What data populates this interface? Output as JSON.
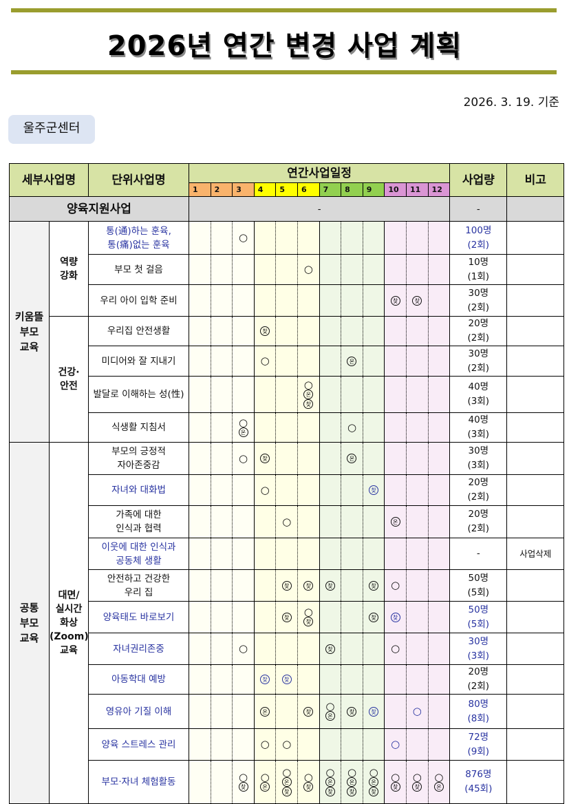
{
  "header": {
    "title": "2026년 연간 변경 사업 계획",
    "date": "2026. 3. 19. 기준",
    "center": "울주군센터",
    "accent_color": "#9a9d2e"
  },
  "table": {
    "columns": {
      "detail": "세부사업명",
      "unit": "단위사업명",
      "schedule": "연간사업일정",
      "amount": "사업량",
      "note": "비고"
    },
    "months": [
      "1",
      "2",
      "3",
      "4",
      "5",
      "6",
      "7",
      "8",
      "9",
      "10",
      "11",
      "12"
    ],
    "quarter_colors": [
      "#f9b36c",
      "#ffff00",
      "#92d050",
      "#da95d4"
    ],
    "section": {
      "label": "양육지원사업",
      "schedule": "-",
      "amount": "-",
      "note": ""
    },
    "groups": [
      {
        "label": "키움뜰\n부모\n교육",
        "subgroups": [
          {
            "label": "역량\n강화",
            "rows": [
              {
                "name": "통(通)하는 훈육,\n통(痛)없는 훈육",
                "blue_name": true,
                "amount": "100명",
                "count": "(2회)",
                "blue_amount": true,
                "note": "",
                "marks": [
                  {
                    "month": 3,
                    "symbols": [
                      "○"
                    ]
                  }
                ]
              },
              {
                "name": "부모 첫 걸음",
                "amount": "10명",
                "count": "(1회)",
                "note": "",
                "marks": [
                  {
                    "month": 6,
                    "symbols": [
                      "○"
                    ]
                  }
                ]
              },
              {
                "name": "우리 아이 입학 준비",
                "amount": "30명",
                "count": "(2회)",
                "note": "",
                "marks": [
                  {
                    "month": 10,
                    "symbols": [
                      "찾"
                    ]
                  },
                  {
                    "month": 11,
                    "symbols": [
                      "찾"
                    ]
                  }
                ]
              }
            ]
          },
          {
            "label": "건강·\n안전",
            "rows": [
              {
                "name": "우리집 안전생활",
                "amount": "20명",
                "count": "(2회)",
                "note": "",
                "marks": [
                  {
                    "month": 4,
                    "symbols": [
                      "찾"
                    ]
                  }
                ]
              },
              {
                "name": "미디어와 잘 지내기",
                "amount": "30명",
                "count": "(2회)",
                "note": "",
                "marks": [
                  {
                    "month": 4,
                    "symbols": [
                      "○"
                    ]
                  },
                  {
                    "month": 8,
                    "symbols": [
                      "온"
                    ]
                  }
                ]
              },
              {
                "name": "발달로 이해하는 성(性)",
                "amount": "40명",
                "count": "(3회)",
                "note": "",
                "marks": [
                  {
                    "month": 6,
                    "symbols": [
                      "○",
                      "온",
                      "찾"
                    ]
                  }
                ]
              },
              {
                "name": "식생활 지침서",
                "amount": "40명",
                "count": "(3회)",
                "note": "",
                "marks": [
                  {
                    "month": 3,
                    "symbols": [
                      "○",
                      "온"
                    ]
                  },
                  {
                    "month": 8,
                    "symbols": [
                      "○"
                    ]
                  }
                ]
              }
            ]
          }
        ]
      },
      {
        "label": "공통\n부모\n교육",
        "subgroups": [
          {
            "label": "대면/\n실시간\n화상\n(Zoom)\n교육",
            "rows": [
              {
                "name": "부모의 긍정적\n자아존중감",
                "amount": "30명",
                "count": "(3회)",
                "note": "",
                "marks": [
                  {
                    "month": 3,
                    "symbols": [
                      "○"
                    ]
                  },
                  {
                    "month": 4,
                    "symbols": [
                      "찾"
                    ]
                  },
                  {
                    "month": 8,
                    "symbols": [
                      "온"
                    ]
                  }
                ]
              },
              {
                "name": "자녀와 대화법",
                "blue_name": true,
                "amount": "20명",
                "count": "(2회)",
                "note": "",
                "marks": [
                  {
                    "month": 4,
                    "symbols": [
                      "○"
                    ]
                  },
                  {
                    "month": 9,
                    "symbols": [
                      "찾"
                    ],
                    "blue": true
                  }
                ]
              },
              {
                "name": "가족에 대한\n인식과 협력",
                "amount": "20명",
                "count": "(2회)",
                "note": "",
                "marks": [
                  {
                    "month": 5,
                    "symbols": [
                      "○"
                    ]
                  },
                  {
                    "month": 10,
                    "symbols": [
                      "온"
                    ]
                  }
                ]
              },
              {
                "name": "이웃에 대한 인식과\n공동체 생활",
                "blue_name": true,
                "amount": "-",
                "count": "",
                "note": "사업삭제",
                "marks": []
              },
              {
                "name": "안전하고 건강한\n우리 집",
                "amount": "50명",
                "count": "(5회)",
                "note": "",
                "marks": [
                  {
                    "month": 5,
                    "symbols": [
                      "찾"
                    ]
                  },
                  {
                    "month": 6,
                    "symbols": [
                      "찾"
                    ]
                  },
                  {
                    "month": 7,
                    "symbols": [
                      "찾"
                    ]
                  },
                  {
                    "month": 9,
                    "symbols": [
                      "찾"
                    ]
                  },
                  {
                    "month": 10,
                    "symbols": [
                      "○"
                    ]
                  }
                ]
              },
              {
                "name": "양육태도 바로보기",
                "blue_name": true,
                "amount": "50명",
                "count": "(5회)",
                "blue_amount": true,
                "note": "",
                "marks": [
                  {
                    "month": 5,
                    "symbols": [
                      "찾"
                    ]
                  },
                  {
                    "month": 6,
                    "symbols": [
                      "○",
                      "찾"
                    ]
                  },
                  {
                    "month": 9,
                    "symbols": [
                      "찾"
                    ]
                  },
                  {
                    "month": 10,
                    "symbols": [
                      "찾"
                    ],
                    "blue": true
                  }
                ]
              },
              {
                "name": "자녀권리존중",
                "blue_name": true,
                "amount": "30명",
                "count": "(3회)",
                "blue_amount": true,
                "note": "",
                "marks": [
                  {
                    "month": 3,
                    "symbols": [
                      "○"
                    ]
                  },
                  {
                    "month": 7,
                    "symbols": [
                      "찾"
                    ]
                  },
                  {
                    "month": 10,
                    "symbols": [
                      "○"
                    ]
                  }
                ]
              },
              {
                "name": "아동학대 예방",
                "blue_name": true,
                "amount": "20명",
                "count": "(2회)",
                "note": "",
                "marks": [
                  {
                    "month": 4,
                    "symbols": [
                      "찾"
                    ],
                    "blue": true
                  },
                  {
                    "month": 5,
                    "symbols": [
                      "찾"
                    ],
                    "blue": true
                  }
                ]
              },
              {
                "name": "영유아 기질 이해",
                "blue_name": true,
                "amount": "80명",
                "count": "(8회)",
                "blue_amount": true,
                "note": "",
                "marks": [
                  {
                    "month": 4,
                    "symbols": [
                      "온"
                    ]
                  },
                  {
                    "month": 6,
                    "symbols": [
                      "찾"
                    ]
                  },
                  {
                    "month": 7,
                    "symbols": [
                      "○",
                      "온"
                    ]
                  },
                  {
                    "month": 8,
                    "symbols": [
                      "찾"
                    ]
                  },
                  {
                    "month": 9,
                    "symbols": [
                      "찾"
                    ],
                    "blue": true
                  },
                  {
                    "month": 11,
                    "symbols": [
                      "○"
                    ],
                    "blue": true
                  }
                ]
              },
              {
                "name": "양육 스트레스 관리",
                "blue_name": true,
                "amount": "72명",
                "count": "(9회)",
                "blue_amount": true,
                "note": "",
                "marks": [
                  {
                    "month": 4,
                    "symbols": [
                      "○"
                    ]
                  },
                  {
                    "month": 5,
                    "symbols": [
                      "○"
                    ]
                  },
                  {
                    "month": 10,
                    "symbols": [
                      "○"
                    ],
                    "blue": true
                  }
                ]
              },
              {
                "name": "부모·자녀 체험활동",
                "blue_name": true,
                "amount": "876명",
                "count": "(45회)",
                "blue_amount": true,
                "note": "",
                "marks": [
                  {
                    "month": 3,
                    "symbols": [
                      "○",
                      "찾"
                    ]
                  },
                  {
                    "month": 4,
                    "symbols": [
                      "○",
                      "온"
                    ]
                  },
                  {
                    "month": 5,
                    "symbols": [
                      "○",
                      "온",
                      "찾"
                    ]
                  },
                  {
                    "month": 6,
                    "symbols": [
                      "○",
                      "찾"
                    ]
                  },
                  {
                    "month": 7,
                    "symbols": [
                      "○",
                      "온",
                      "찾"
                    ]
                  },
                  {
                    "month": 8,
                    "symbols": [
                      "○",
                      "온",
                      "찾"
                    ]
                  },
                  {
                    "month": 9,
                    "symbols": [
                      "○",
                      "온",
                      "찾"
                    ]
                  },
                  {
                    "month": 10,
                    "symbols": [
                      "○",
                      "찾"
                    ]
                  },
                  {
                    "month": 11,
                    "symbols": [
                      "○",
                      "찾"
                    ]
                  },
                  {
                    "month": 12,
                    "symbols": [
                      "○",
                      "온"
                    ]
                  }
                ]
              }
            ]
          }
        ]
      }
    ]
  }
}
